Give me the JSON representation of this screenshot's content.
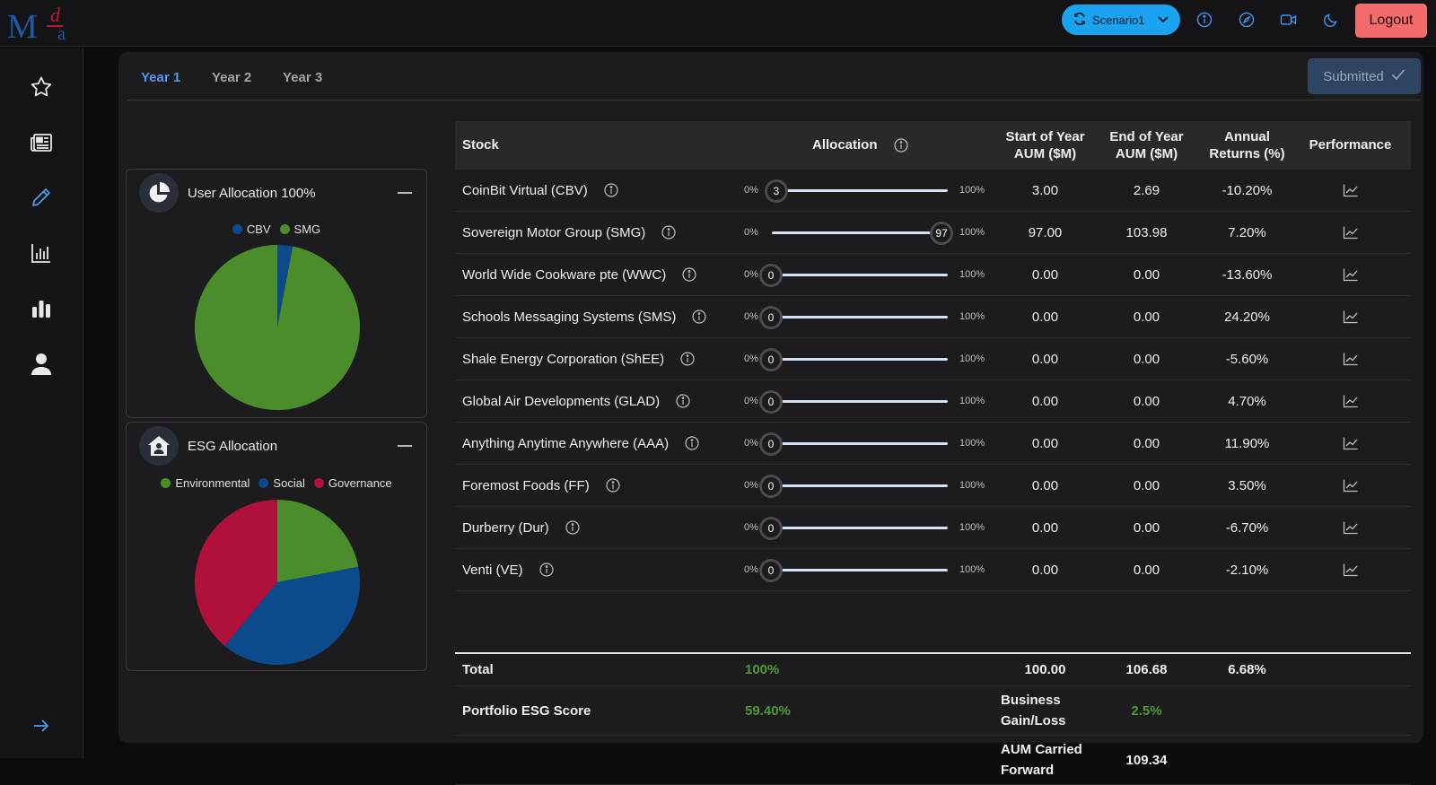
{
  "brand": {
    "logo_text": "Mda"
  },
  "topbar": {
    "scenario_label": "Scenario1",
    "logout_label": "Logout",
    "icons": [
      "info-icon",
      "compass-icon",
      "video-icon",
      "moon-icon"
    ]
  },
  "sidebar": {
    "items": [
      "star-icon",
      "newspaper-icon",
      "pencil-icon",
      "chart-line-icon",
      "bar-chart-icon",
      "user-icon"
    ],
    "expand_icon": "arrow-right-icon"
  },
  "tabs": [
    "Year 1",
    "Year 2",
    "Year 3"
  ],
  "submitted_label": "Submitted",
  "user_allocation": {
    "title": "User Allocation  100%",
    "legend": [
      {
        "label": "CBV",
        "color": "#0b4a8b"
      },
      {
        "label": "SMG",
        "color": "#4b8d2a"
      }
    ],
    "values": [
      3,
      97
    ]
  },
  "esg_allocation": {
    "title": "ESG Allocation",
    "legend": [
      {
        "label": "Environmental",
        "color": "#4b8d2a"
      },
      {
        "label": "Social",
        "color": "#0b4a8b"
      },
      {
        "label": "Governance",
        "color": "#b0103c"
      }
    ],
    "values": [
      22,
      39,
      39
    ]
  },
  "table": {
    "headers": {
      "stock": "Stock",
      "allocation": "Allocation",
      "start_aum": "Start of Year AUM ($M)",
      "end_aum": "End of Year AUM ($M)",
      "returns": "Annual Returns (%)",
      "performance": "Performance"
    },
    "min_label": "0%",
    "max_label": "100%",
    "rows": [
      {
        "name": "CoinBit Virtual  (CBV)",
        "alloc": 3,
        "start": "3.00",
        "end": "2.69",
        "ret": "-10.20%"
      },
      {
        "name": "Sovereign Motor Group  (SMG)",
        "alloc": 97,
        "start": "97.00",
        "end": "103.98",
        "ret": "7.20%"
      },
      {
        "name": "World Wide Cookware pte  (WWC)",
        "alloc": 0,
        "start": "0.00",
        "end": "0.00",
        "ret": "-13.60%"
      },
      {
        "name": "Schools Messaging Systems  (SMS)",
        "alloc": 0,
        "start": "0.00",
        "end": "0.00",
        "ret": "24.20%"
      },
      {
        "name": "Shale Energy Corporation  (ShEE)",
        "alloc": 0,
        "start": "0.00",
        "end": "0.00",
        "ret": "-5.60%"
      },
      {
        "name": "Global Air Developments  (GLAD)",
        "alloc": 0,
        "start": "0.00",
        "end": "0.00",
        "ret": "4.70%"
      },
      {
        "name": "Anything Anytime Anywhere  (AAA)",
        "alloc": 0,
        "start": "0.00",
        "end": "0.00",
        "ret": "11.90%"
      },
      {
        "name": "Foremost Foods  (FF)",
        "alloc": 0,
        "start": "0.00",
        "end": "0.00",
        "ret": "3.50%"
      },
      {
        "name": "Durberry  (Dur)",
        "alloc": 0,
        "start": "0.00",
        "end": "0.00",
        "ret": "-6.70%"
      },
      {
        "name": "Venti  (VE)",
        "alloc": 0,
        "start": "0.00",
        "end": "0.00",
        "ret": "-2.10%"
      }
    ],
    "total": {
      "label": "Total",
      "alloc": "100%",
      "start": "100.00",
      "end": "106.68",
      "ret": "6.68%"
    },
    "esg_score": {
      "label": "Portfolio ESG Score",
      "value": "59.40%",
      "gain_label": "Business Gain/Loss",
      "gain_value": "2.5%"
    },
    "carried": {
      "label": "AUM Carried Forward",
      "value": "109.34"
    }
  }
}
